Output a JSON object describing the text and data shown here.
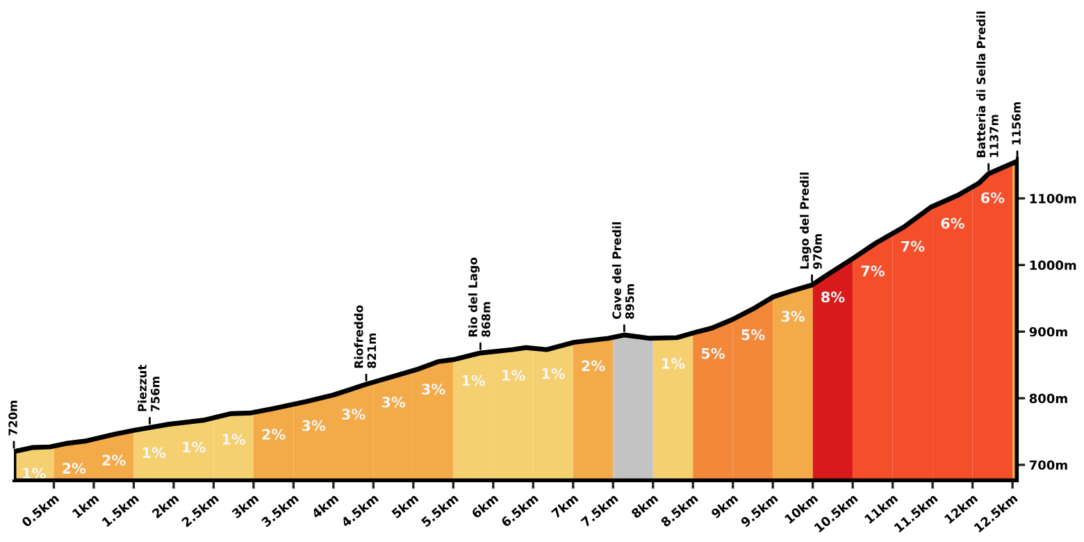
{
  "chart_data": {
    "type": "area",
    "x": [
      0,
      0.23,
      0.45,
      0.65,
      0.91,
      1.26,
      1.51,
      1.7,
      1.94,
      2.37,
      2.72,
      2.97,
      3.23,
      3.66,
      4.0,
      4.41,
      5.04,
      5.31,
      5.5,
      5.84,
      6.24,
      6.41,
      6.67,
      7.01,
      7.44,
      7.64,
      7.96,
      8.3,
      8.56,
      8.73,
      8.99,
      9.25,
      9.5,
      9.76,
      9.99,
      10.19,
      10.53,
      10.79,
      11.14,
      11.48,
      11.82,
      12.08,
      12.2,
      12.56
    ],
    "series": [
      {
        "color": "#000000",
        "values": [
          720,
          726,
          727,
          732,
          736,
          746,
          752,
          756,
          761,
          767,
          777,
          778,
          784,
          795,
          805,
          821,
          843,
          855,
          858,
          868,
          873,
          876,
          873,
          884,
          890,
          895,
          890,
          891,
          900,
          905,
          918,
          934,
          952,
          962,
          970,
          986,
          1012,
          1033,
          1057,
          1087,
          1105,
          1123,
          1137,
          1156
        ]
      }
    ],
    "xlim": [
      0,
      12.56
    ],
    "ylim": [
      676,
      1160
    ],
    "xticks": [
      {
        "value": 0.5,
        "label": "0.5km"
      },
      {
        "value": 1,
        "label": "1km"
      },
      {
        "value": 1.5,
        "label": "1.5km"
      },
      {
        "value": 2,
        "label": "2km"
      },
      {
        "value": 2.5,
        "label": "2.5km"
      },
      {
        "value": 3,
        "label": "3km"
      },
      {
        "value": 3.5,
        "label": "3.5km"
      },
      {
        "value": 4,
        "label": "4km"
      },
      {
        "value": 4.5,
        "label": "4.5km"
      },
      {
        "value": 5,
        "label": "5km"
      },
      {
        "value": 5.5,
        "label": "5.5km"
      },
      {
        "value": 6,
        "label": "6km"
      },
      {
        "value": 6.5,
        "label": "6.5km"
      },
      {
        "value": 7,
        "label": "7km"
      },
      {
        "value": 7.5,
        "label": "7.5km"
      },
      {
        "value": 8,
        "label": "8km"
      },
      {
        "value": 8.5,
        "label": "8.5km"
      },
      {
        "value": 9,
        "label": "9km"
      },
      {
        "value": 9.5,
        "label": "9.5km"
      },
      {
        "value": 10,
        "label": "10km"
      },
      {
        "value": 10.5,
        "label": "10.5km"
      },
      {
        "value": 11,
        "label": "11km"
      },
      {
        "value": 11.5,
        "label": "11.5km"
      },
      {
        "value": 12,
        "label": "12km"
      },
      {
        "value": 12.5,
        "label": "12.5km"
      }
    ],
    "yticks": [
      {
        "value": 700,
        "label": "700m"
      },
      {
        "value": 800,
        "label": "800m"
      },
      {
        "value": 900,
        "label": "900m"
      },
      {
        "value": 1000,
        "label": "1000m"
      },
      {
        "value": 1100,
        "label": "1100m"
      }
    ],
    "bands": [
      {
        "axis": "x",
        "from": 0,
        "to": 0.5,
        "label": "1%",
        "color": "#fdd775"
      },
      {
        "axis": "x",
        "from": 0.5,
        "to": 1,
        "label": "2%",
        "color": "#fbb04c"
      },
      {
        "axis": "x",
        "from": 1,
        "to": 1.5,
        "label": "2%",
        "color": "#fbb04c"
      },
      {
        "axis": "x",
        "from": 1.5,
        "to": 2,
        "label": "1%",
        "color": "#fdd775"
      },
      {
        "axis": "x",
        "from": 2,
        "to": 2.5,
        "label": "1%",
        "color": "#fdd775"
      },
      {
        "axis": "x",
        "from": 2.5,
        "to": 3,
        "label": "1%",
        "color": "#fdd775"
      },
      {
        "axis": "x",
        "from": 3,
        "to": 3.5,
        "label": "2%",
        "color": "#fbb04c"
      },
      {
        "axis": "x",
        "from": 3.5,
        "to": 4,
        "label": "3%",
        "color": "#fbb04c"
      },
      {
        "axis": "x",
        "from": 4,
        "to": 4.5,
        "label": "3%",
        "color": "#fbb04c"
      },
      {
        "axis": "x",
        "from": 4.5,
        "to": 5,
        "label": "3%",
        "color": "#fbb04c"
      },
      {
        "axis": "x",
        "from": 5,
        "to": 5.5,
        "label": "3%",
        "color": "#fbb04c"
      },
      {
        "axis": "x",
        "from": 5.5,
        "to": 6,
        "label": "1%",
        "color": "#fdd775"
      },
      {
        "axis": "x",
        "from": 6,
        "to": 6.5,
        "label": "1%",
        "color": "#fdd775"
      },
      {
        "axis": "x",
        "from": 6.5,
        "to": 7,
        "label": "1%",
        "color": "#fdd775"
      },
      {
        "axis": "x",
        "from": 7,
        "to": 7.5,
        "label": "2%",
        "color": "#fbb04c"
      },
      {
        "axis": "x",
        "from": 7.5,
        "to": 8,
        "label": null,
        "color": "#cacaca"
      },
      {
        "axis": "x",
        "from": 8,
        "to": 8.5,
        "label": "1%",
        "color": "#fdd775"
      },
      {
        "axis": "x",
        "from": 8.5,
        "to": 9,
        "label": "5%",
        "color": "#fb8d3d"
      },
      {
        "axis": "x",
        "from": 9,
        "to": 9.5,
        "label": "5%",
        "color": "#fb8d3d"
      },
      {
        "axis": "x",
        "from": 9.5,
        "to": 10,
        "label": "3%",
        "color": "#fbb04c"
      },
      {
        "axis": "x",
        "from": 10,
        "to": 10.5,
        "label": "8%",
        "color": "#e01b1d"
      },
      {
        "axis": "x",
        "from": 10.5,
        "to": 11,
        "label": "7%",
        "color": "#fc512c"
      },
      {
        "axis": "x",
        "from": 11,
        "to": 11.5,
        "label": "7%",
        "color": "#fc512c"
      },
      {
        "axis": "x",
        "from": 11.5,
        "to": 12,
        "label": "6%",
        "color": "#fc512c"
      },
      {
        "axis": "x",
        "from": 12,
        "to": 12.5,
        "label": "6%",
        "color": "#fc512c"
      },
      {
        "axis": "x",
        "from": 12.5,
        "to": 12.56,
        "label": null,
        "color": "#fbb04c"
      }
    ],
    "annotations": [
      {
        "text": "720m",
        "x": 0,
        "y": 720
      },
      {
        "text": "Piezzut\n756m",
        "x": 1.7,
        "y": 756
      },
      {
        "text": "Riofreddo\n821m",
        "x": 4.41,
        "y": 821
      },
      {
        "text": "Rio del Lago\n868m",
        "x": 5.84,
        "y": 868
      },
      {
        "text": "Cave del Predil\n895m",
        "x": 7.64,
        "y": 895
      },
      {
        "text": "Lago del Predil\n970m",
        "x": 9.99,
        "y": 970
      },
      {
        "text": "Batteria di Sella Predil\n1137m",
        "x": 12.2,
        "y": 1137
      },
      {
        "text": "1156m",
        "x": 12.56,
        "y": 1156
      }
    ]
  }
}
